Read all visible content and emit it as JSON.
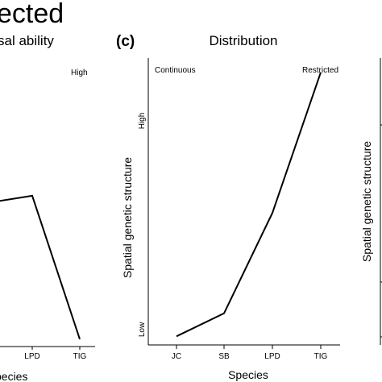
{
  "header_fragment": "ected",
  "chart_data": [
    {
      "type": "line",
      "title": "sal ability",
      "annotations": [
        "High"
      ],
      "categories": [
        "LPD",
        "TIG"
      ],
      "values": [
        0.52,
        0.02
      ],
      "partial_prev_value": 0.5,
      "xlabel": "pecies"
    },
    {
      "type": "line",
      "panel_label": "(c)",
      "title": "Distribution",
      "annotations": [
        "Continuous",
        "Restricted"
      ],
      "categories": [
        "JC",
        "SB",
        "LPD",
        "TIG"
      ],
      "values": [
        0.03,
        0.11,
        0.46,
        0.95
      ],
      "ylabel": "Spatial genetic structure",
      "ytick_low": "Low",
      "ytick_high": "High",
      "xlabel": "Species",
      "ylim": [
        0,
        1
      ]
    },
    {
      "type": "line",
      "ylabel": "Spatial genetic structure"
    }
  ]
}
